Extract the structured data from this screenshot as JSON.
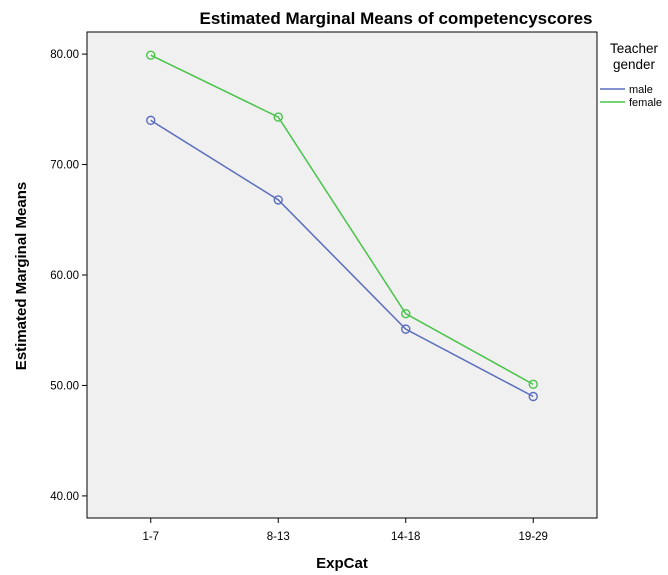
{
  "chart_data": {
    "type": "line",
    "title": "Estimated Marginal Means of competencyscores",
    "xlabel": "ExpCat",
    "ylabel": "Estimated Marginal Means",
    "categories": [
      "1-7",
      "8-13",
      "14-18",
      "19-29"
    ],
    "ylim": [
      38.0,
      82.0
    ],
    "yticks": [
      40.0,
      50.0,
      60.0,
      70.0,
      80.0
    ],
    "ytick_labels": [
      "40.00",
      "50.00",
      "60.00",
      "70.00",
      "80.00"
    ],
    "grid": false,
    "legend": {
      "title_lines": [
        "Teacher",
        "gender"
      ],
      "position": "right"
    },
    "series": [
      {
        "name": "male",
        "color": "#5a6dbd",
        "values": [
          74.0,
          66.8,
          55.1,
          49.0
        ]
      },
      {
        "name": "female",
        "color": "#49c449",
        "values": [
          79.9,
          74.3,
          56.5,
          50.1
        ]
      }
    ],
    "colors": {
      "plot_background": "#f0f0f0",
      "axis": "#000000"
    }
  }
}
